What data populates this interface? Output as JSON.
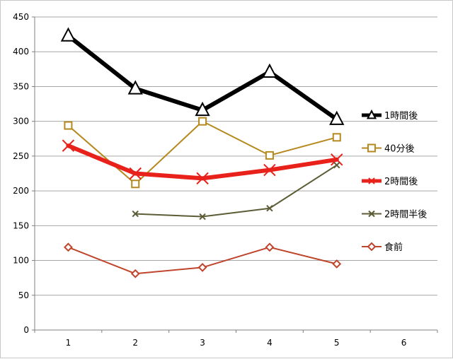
{
  "chart_data": {
    "type": "line",
    "title": "",
    "xlabel": "",
    "ylabel": "",
    "x": [
      1,
      2,
      3,
      4,
      5
    ],
    "x_ticks": [
      "1",
      "2",
      "3",
      "4",
      "5",
      "6"
    ],
    "xlim": [
      1,
      6
    ],
    "ylim": [
      0,
      450
    ],
    "y_ticks": [
      "0",
      "50",
      "100",
      "150",
      "200",
      "250",
      "300",
      "350",
      "400",
      "450"
    ],
    "grid": "horizontal",
    "legend_position": "right",
    "series": [
      {
        "name": "1時間後",
        "values": [
          423,
          347,
          316,
          371,
          303
        ],
        "color": "#000000",
        "marker": "triangle",
        "weight": "heavy"
      },
      {
        "name": "40分後",
        "values": [
          294,
          210,
          300,
          251,
          277
        ],
        "color": "#b5891e",
        "marker": "square",
        "weight": "thin"
      },
      {
        "name": "2時間後",
        "values": [
          265,
          225,
          218,
          230,
          245
        ],
        "color": "#e8211b",
        "marker": "x",
        "weight": "heavy"
      },
      {
        "name": "2時間半後",
        "values": [
          null,
          167,
          163,
          175,
          237
        ],
        "color": "#5c5c36",
        "marker": "x",
        "weight": "thin"
      },
      {
        "name": "食前",
        "values": [
          119,
          81,
          90,
          119,
          95
        ],
        "color": "#c0442b",
        "marker": "diamond",
        "weight": "thin"
      }
    ]
  }
}
